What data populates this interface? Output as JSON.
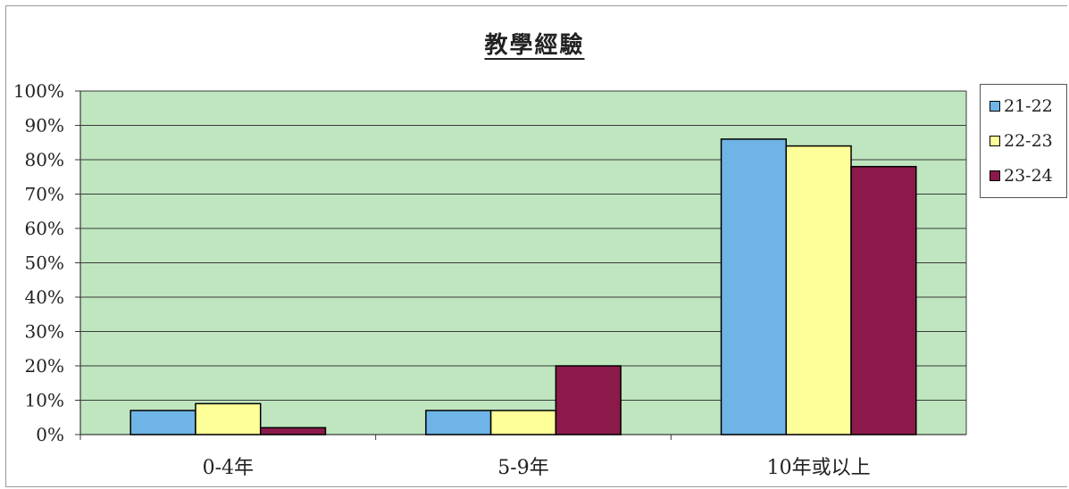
{
  "chart_data": {
    "type": "bar",
    "title": "教學經驗",
    "categories": [
      "0-4年",
      "5-9年",
      "10年或以上"
    ],
    "series": [
      {
        "name": "21-22",
        "color": "#6fb4e6",
        "values": [
          7,
          7,
          86
        ]
      },
      {
        "name": "22-23",
        "color": "#ffff99",
        "values": [
          9,
          7,
          84
        ]
      },
      {
        "name": "23-24",
        "color": "#8b1a4a",
        "values": [
          2,
          20,
          78
        ]
      }
    ],
    "ylim": [
      0,
      100
    ],
    "yticks": [
      "0%",
      "10%",
      "20%",
      "30%",
      "40%",
      "50%",
      "60%",
      "70%",
      "80%",
      "90%",
      "100%"
    ],
    "grid": true,
    "plot_background": "#bfe6bf",
    "legend_position": "right"
  }
}
